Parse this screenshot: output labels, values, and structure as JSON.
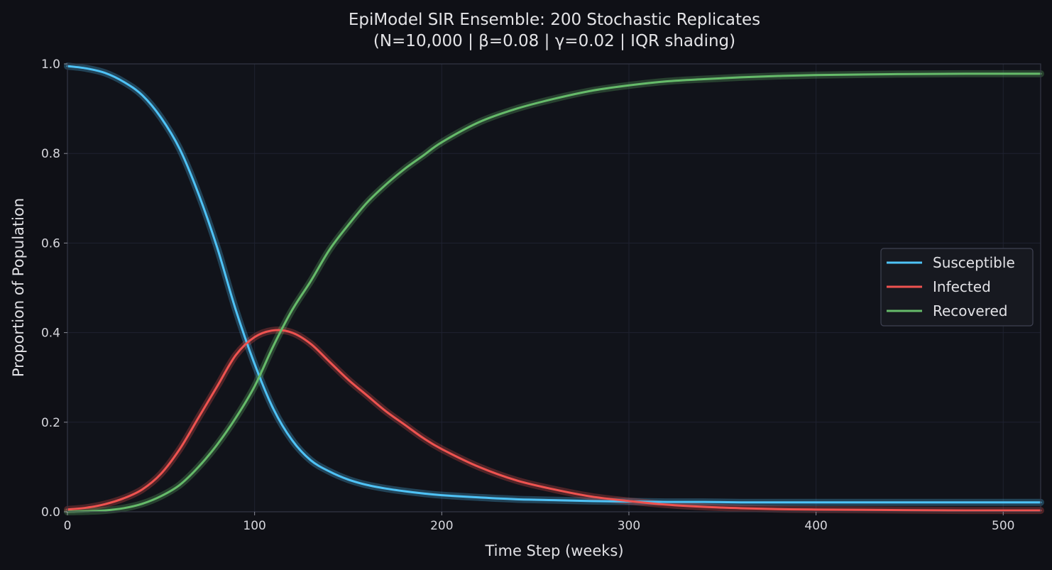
{
  "chart_data": {
    "type": "line",
    "title": "EpiModel SIR Ensemble: 200 Stochastic Replicates",
    "subtitle": "(N=10,000 | β=0.08 | γ=0.02 | IQR shading)",
    "xlabel": "Time Step (weeks)",
    "ylabel": "Proportion of Population",
    "xlim": [
      0,
      520
    ],
    "ylim": [
      0,
      1.0
    ],
    "x_ticks": [
      0,
      100,
      200,
      300,
      400,
      500
    ],
    "x_tick_labels": [
      "0",
      "100",
      "200",
      "300",
      "400",
      "500"
    ],
    "y_ticks": [
      0.0,
      0.2,
      0.4,
      0.6,
      0.8,
      1.0
    ],
    "y_tick_labels": [
      "0.0",
      "0.2",
      "0.4",
      "0.6",
      "0.8",
      "1.0"
    ],
    "grid": true,
    "legend_position": "center-right",
    "x": [
      0,
      10,
      20,
      30,
      40,
      50,
      60,
      70,
      80,
      90,
      100,
      110,
      120,
      130,
      140,
      150,
      160,
      170,
      180,
      190,
      200,
      220,
      240,
      260,
      280,
      300,
      320,
      340,
      360,
      380,
      400,
      440,
      480,
      520
    ],
    "series": [
      {
        "name": "Susceptible",
        "color": "#4fc3f7",
        "values": [
          0.995,
          0.99,
          0.98,
          0.96,
          0.93,
          0.88,
          0.81,
          0.71,
          0.59,
          0.45,
          0.33,
          0.23,
          0.16,
          0.115,
          0.09,
          0.072,
          0.06,
          0.052,
          0.046,
          0.041,
          0.037,
          0.032,
          0.028,
          0.026,
          0.024,
          0.023,
          0.022,
          0.022,
          0.021,
          0.021,
          0.021,
          0.021,
          0.021,
          0.021
        ]
      },
      {
        "name": "Infected",
        "color": "#ef5350",
        "values": [
          0.005,
          0.009,
          0.017,
          0.03,
          0.05,
          0.085,
          0.14,
          0.21,
          0.28,
          0.35,
          0.39,
          0.405,
          0.4,
          0.375,
          0.335,
          0.295,
          0.26,
          0.225,
          0.195,
          0.165,
          0.14,
          0.1,
          0.07,
          0.05,
          0.034,
          0.024,
          0.016,
          0.011,
          0.008,
          0.006,
          0.005,
          0.004,
          0.003,
          0.003
        ]
      },
      {
        "name": "Recovered",
        "color": "#66bb6a",
        "values": [
          0.0,
          0.001,
          0.003,
          0.008,
          0.018,
          0.035,
          0.06,
          0.1,
          0.15,
          0.21,
          0.28,
          0.37,
          0.45,
          0.515,
          0.585,
          0.64,
          0.69,
          0.73,
          0.765,
          0.795,
          0.825,
          0.87,
          0.9,
          0.922,
          0.94,
          0.952,
          0.961,
          0.966,
          0.97,
          0.973,
          0.975,
          0.977,
          0.978,
          0.978
        ]
      }
    ]
  }
}
